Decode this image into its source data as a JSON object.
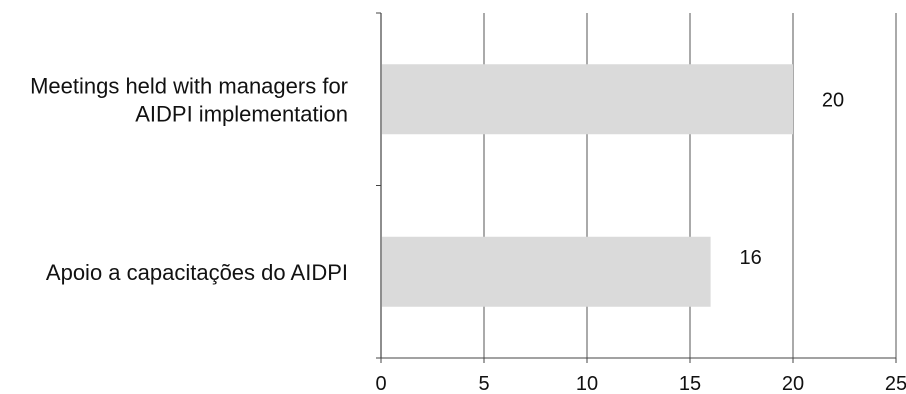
{
  "chart_data": {
    "type": "bar",
    "orientation": "horizontal",
    "categories": [
      [
        "Meetings held with managers for",
        "AIDPI implementation"
      ],
      [
        "Apoio a capacitações do AIDPI"
      ]
    ],
    "values": [
      20,
      16
    ],
    "data_labels": [
      "20",
      "16"
    ],
    "xlim": [
      0,
      25
    ],
    "xticks": [
      "0",
      "5",
      "10",
      "15",
      "20",
      "25"
    ],
    "title": "",
    "xlabel": "",
    "ylabel": "",
    "grid": "vertical",
    "legend": "none",
    "colors": {
      "bar": "#dadada",
      "grid": "#555555",
      "axis": "#444444",
      "text": "#111111"
    }
  }
}
